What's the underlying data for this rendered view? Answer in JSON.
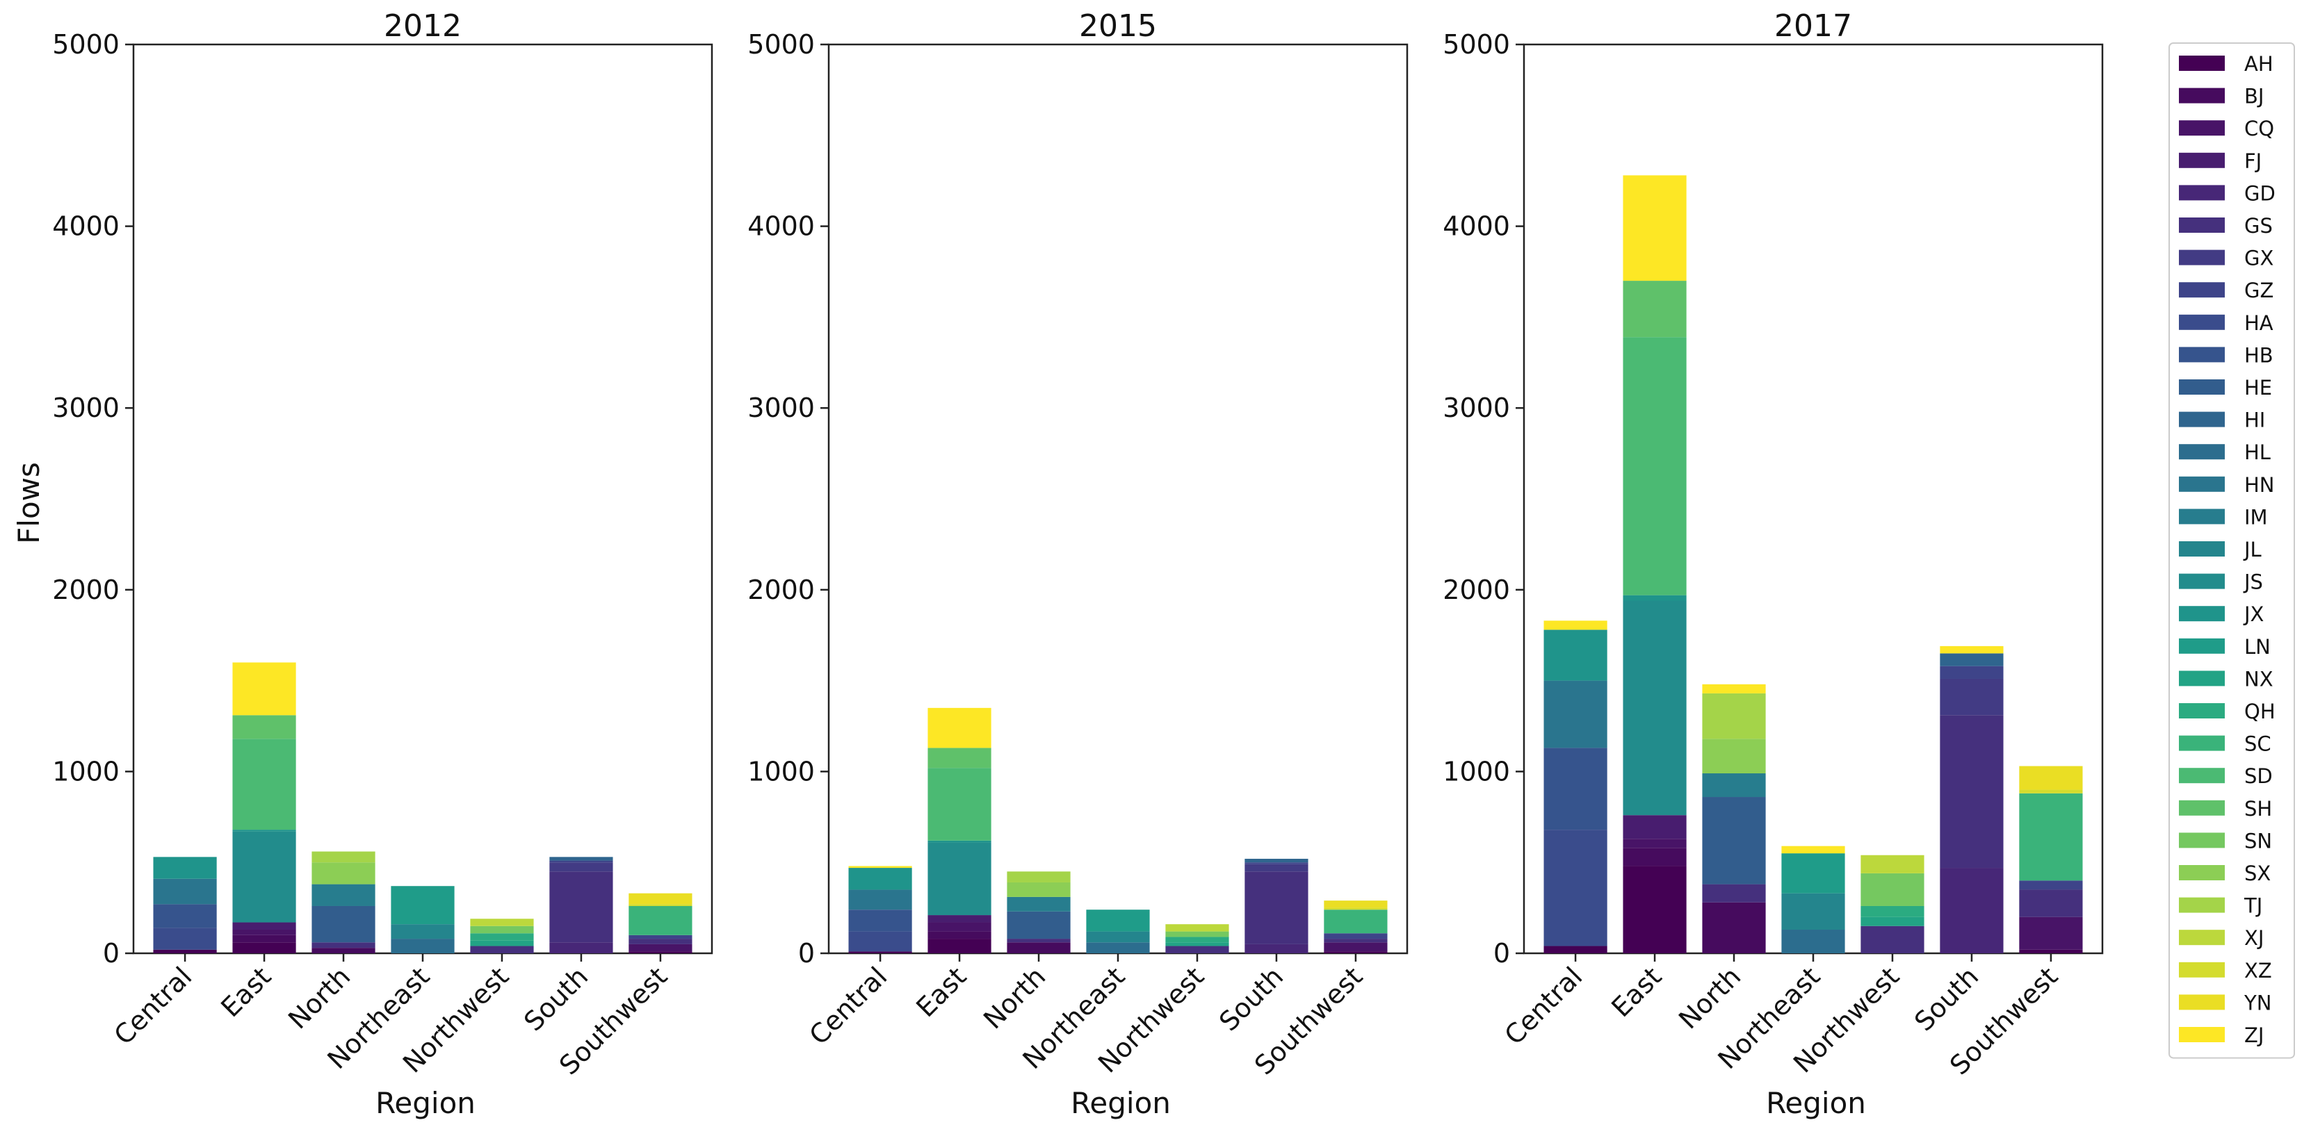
{
  "figure": {
    "ylabel": "Flows",
    "xlabel": "Region"
  },
  "chart_data": [
    {
      "type": "bar",
      "stacked": true,
      "title": "2012",
      "xlabel": "Region",
      "ylabel": "Flows",
      "ylim": [
        0,
        5000
      ],
      "yticks": [
        0,
        1000,
        2000,
        3000,
        4000,
        5000
      ],
      "categories": [
        "Central",
        "East",
        "North",
        "Northeast",
        "Northwest",
        "South",
        "Southwest"
      ],
      "series": [
        {
          "name": "AH",
          "values": [
            20,
            60,
            0,
            0,
            0,
            0,
            10
          ]
        },
        {
          "name": "BJ",
          "values": [
            0,
            40,
            30,
            0,
            0,
            0,
            0
          ]
        },
        {
          "name": "CQ",
          "values": [
            0,
            30,
            0,
            0,
            0,
            0,
            40
          ]
        },
        {
          "name": "FJ",
          "values": [
            0,
            40,
            0,
            0,
            0,
            0,
            0
          ]
        },
        {
          "name": "GD",
          "values": [
            0,
            0,
            0,
            0,
            0,
            60,
            0
          ]
        },
        {
          "name": "GS",
          "values": [
            0,
            0,
            30,
            0,
            40,
            390,
            30
          ]
        },
        {
          "name": "GX",
          "values": [
            0,
            0,
            0,
            0,
            0,
            50,
            0
          ]
        },
        {
          "name": "GZ",
          "values": [
            0,
            0,
            0,
            0,
            0,
            10,
            20
          ]
        },
        {
          "name": "HA",
          "values": [
            120,
            0,
            0,
            0,
            0,
            0,
            0
          ]
        },
        {
          "name": "HB",
          "values": [
            130,
            0,
            0,
            0,
            0,
            0,
            0
          ]
        },
        {
          "name": "HE",
          "values": [
            0,
            0,
            200,
            0,
            0,
            0,
            0
          ]
        },
        {
          "name": "HI",
          "values": [
            0,
            0,
            0,
            0,
            0,
            20,
            0
          ]
        },
        {
          "name": "HL",
          "values": [
            0,
            0,
            0,
            80,
            0,
            0,
            0
          ]
        },
        {
          "name": "HN",
          "values": [
            140,
            0,
            0,
            0,
            0,
            0,
            0
          ]
        },
        {
          "name": "IM",
          "values": [
            0,
            0,
            120,
            0,
            0,
            0,
            0
          ]
        },
        {
          "name": "JL",
          "values": [
            0,
            0,
            0,
            80,
            0,
            0,
            0
          ]
        },
        {
          "name": "JS",
          "values": [
            0,
            500,
            0,
            0,
            0,
            0,
            0
          ]
        },
        {
          "name": "JX",
          "values": [
            120,
            10,
            0,
            0,
            0,
            0,
            0
          ]
        },
        {
          "name": "LN",
          "values": [
            0,
            0,
            0,
            210,
            0,
            0,
            0
          ]
        },
        {
          "name": "NX",
          "values": [
            0,
            0,
            0,
            0,
            30,
            0,
            0
          ]
        },
        {
          "name": "QH",
          "values": [
            0,
            0,
            0,
            0,
            40,
            0,
            0
          ]
        },
        {
          "name": "SC",
          "values": [
            0,
            0,
            0,
            0,
            0,
            0,
            160
          ]
        },
        {
          "name": "SD",
          "values": [
            0,
            500,
            0,
            0,
            0,
            0,
            0
          ]
        },
        {
          "name": "SH",
          "values": [
            0,
            130,
            0,
            0,
            0,
            0,
            0
          ]
        },
        {
          "name": "SN",
          "values": [
            0,
            0,
            0,
            0,
            40,
            0,
            0
          ]
        },
        {
          "name": "SX",
          "values": [
            0,
            0,
            120,
            0,
            0,
            0,
            0
          ]
        },
        {
          "name": "TJ",
          "values": [
            0,
            0,
            60,
            0,
            0,
            0,
            0
          ]
        },
        {
          "name": "XJ",
          "values": [
            0,
            0,
            0,
            0,
            40,
            0,
            0
          ]
        },
        {
          "name": "XZ",
          "values": [
            0,
            0,
            0,
            0,
            0,
            0,
            10
          ]
        },
        {
          "name": "YN",
          "values": [
            0,
            0,
            0,
            0,
            0,
            0,
            60
          ]
        },
        {
          "name": "ZJ",
          "values": [
            0,
            290,
            0,
            0,
            0,
            0,
            0
          ]
        }
      ]
    },
    {
      "type": "bar",
      "stacked": true,
      "title": "2015",
      "xlabel": "Region",
      "ylabel": "Flows",
      "ylim": [
        0,
        5000
      ],
      "yticks": [
        0,
        1000,
        2000,
        3000,
        4000,
        5000
      ],
      "categories": [
        "Central",
        "East",
        "North",
        "Northeast",
        "Northwest",
        "South",
        "Southwest"
      ],
      "series": [
        {
          "name": "AH",
          "values": [
            10,
            80,
            0,
            0,
            0,
            0,
            10
          ]
        },
        {
          "name": "BJ",
          "values": [
            0,
            40,
            60,
            0,
            0,
            0,
            0
          ]
        },
        {
          "name": "CQ",
          "values": [
            0,
            50,
            0,
            0,
            0,
            0,
            50
          ]
        },
        {
          "name": "FJ",
          "values": [
            0,
            40,
            0,
            0,
            0,
            0,
            0
          ]
        },
        {
          "name": "GD",
          "values": [
            0,
            0,
            0,
            0,
            0,
            50,
            0
          ]
        },
        {
          "name": "GS",
          "values": [
            0,
            0,
            20,
            0,
            40,
            400,
            20
          ]
        },
        {
          "name": "GX",
          "values": [
            0,
            0,
            0,
            0,
            0,
            40,
            0
          ]
        },
        {
          "name": "GZ",
          "values": [
            0,
            0,
            0,
            0,
            0,
            10,
            30
          ]
        },
        {
          "name": "HA",
          "values": [
            110,
            0,
            0,
            0,
            0,
            0,
            0
          ]
        },
        {
          "name": "HB",
          "values": [
            120,
            0,
            0,
            0,
            0,
            0,
            0
          ]
        },
        {
          "name": "HE",
          "values": [
            0,
            0,
            150,
            0,
            0,
            0,
            0
          ]
        },
        {
          "name": "HI",
          "values": [
            0,
            0,
            0,
            0,
            0,
            20,
            0
          ]
        },
        {
          "name": "HL",
          "values": [
            0,
            0,
            0,
            60,
            0,
            0,
            0
          ]
        },
        {
          "name": "HN",
          "values": [
            110,
            0,
            0,
            0,
            0,
            0,
            0
          ]
        },
        {
          "name": "IM",
          "values": [
            0,
            0,
            80,
            0,
            0,
            0,
            0
          ]
        },
        {
          "name": "JL",
          "values": [
            0,
            0,
            0,
            60,
            0,
            0,
            0
          ]
        },
        {
          "name": "JS",
          "values": [
            0,
            400,
            0,
            0,
            0,
            0,
            0
          ]
        },
        {
          "name": "JX",
          "values": [
            120,
            10,
            0,
            0,
            0,
            0,
            0
          ]
        },
        {
          "name": "LN",
          "values": [
            0,
            0,
            0,
            120,
            0,
            0,
            0
          ]
        },
        {
          "name": "NX",
          "values": [
            0,
            0,
            0,
            0,
            20,
            0,
            0
          ]
        },
        {
          "name": "QH",
          "values": [
            0,
            0,
            0,
            0,
            30,
            0,
            0
          ]
        },
        {
          "name": "SC",
          "values": [
            0,
            0,
            0,
            0,
            0,
            0,
            130
          ]
        },
        {
          "name": "SD",
          "values": [
            0,
            400,
            0,
            0,
            0,
            0,
            0
          ]
        },
        {
          "name": "SH",
          "values": [
            0,
            110,
            0,
            0,
            0,
            0,
            0
          ]
        },
        {
          "name": "SN",
          "values": [
            0,
            0,
            0,
            0,
            30,
            0,
            0
          ]
        },
        {
          "name": "SX",
          "values": [
            0,
            0,
            80,
            0,
            0,
            0,
            0
          ]
        },
        {
          "name": "TJ",
          "values": [
            0,
            0,
            60,
            0,
            0,
            0,
            0
          ]
        },
        {
          "name": "XJ",
          "values": [
            0,
            0,
            0,
            0,
            40,
            0,
            0
          ]
        },
        {
          "name": "XZ",
          "values": [
            0,
            0,
            0,
            0,
            0,
            0,
            10
          ]
        },
        {
          "name": "YN",
          "values": [
            0,
            0,
            0,
            0,
            0,
            0,
            40
          ]
        },
        {
          "name": "ZJ",
          "values": [
            10,
            220,
            0,
            0,
            0,
            0,
            0
          ]
        }
      ]
    },
    {
      "type": "bar",
      "stacked": true,
      "title": "2017",
      "xlabel": "Region",
      "ylabel": "Flows",
      "ylim": [
        0,
        5000
      ],
      "yticks": [
        0,
        1000,
        2000,
        3000,
        4000,
        5000
      ],
      "categories": [
        "Central",
        "East",
        "North",
        "Northeast",
        "Northwest",
        "South",
        "Southwest"
      ],
      "series": [
        {
          "name": "AH",
          "values": [
            40,
            480,
            0,
            0,
            0,
            0,
            20
          ]
        },
        {
          "name": "BJ",
          "values": [
            0,
            100,
            280,
            0,
            0,
            0,
            0
          ]
        },
        {
          "name": "CQ",
          "values": [
            0,
            50,
            0,
            0,
            0,
            0,
            180
          ]
        },
        {
          "name": "FJ",
          "values": [
            0,
            130,
            0,
            0,
            0,
            0,
            0
          ]
        },
        {
          "name": "GD",
          "values": [
            0,
            0,
            0,
            0,
            0,
            470,
            0
          ]
        },
        {
          "name": "GS",
          "values": [
            0,
            0,
            100,
            0,
            150,
            840,
            150
          ]
        },
        {
          "name": "GX",
          "values": [
            0,
            0,
            0,
            0,
            0,
            200,
            0
          ]
        },
        {
          "name": "GZ",
          "values": [
            0,
            0,
            0,
            0,
            0,
            70,
            50
          ]
        },
        {
          "name": "HA",
          "values": [
            640,
            0,
            0,
            0,
            0,
            0,
            0
          ]
        },
        {
          "name": "HB",
          "values": [
            450,
            0,
            0,
            0,
            0,
            0,
            0
          ]
        },
        {
          "name": "HE",
          "values": [
            0,
            0,
            480,
            0,
            0,
            0,
            0
          ]
        },
        {
          "name": "HI",
          "values": [
            0,
            0,
            0,
            0,
            0,
            70,
            0
          ]
        },
        {
          "name": "HL",
          "values": [
            0,
            0,
            0,
            130,
            0,
            0,
            0
          ]
        },
        {
          "name": "HN",
          "values": [
            370,
            0,
            0,
            0,
            0,
            0,
            0
          ]
        },
        {
          "name": "IM",
          "values": [
            0,
            0,
            130,
            0,
            0,
            0,
            0
          ]
        },
        {
          "name": "JL",
          "values": [
            0,
            0,
            0,
            200,
            0,
            0,
            0
          ]
        },
        {
          "name": "JS",
          "values": [
            0,
            1180,
            0,
            0,
            0,
            0,
            0
          ]
        },
        {
          "name": "JX",
          "values": [
            280,
            30,
            0,
            0,
            0,
            0,
            0
          ]
        },
        {
          "name": "LN",
          "values": [
            0,
            0,
            0,
            220,
            0,
            0,
            0
          ]
        },
        {
          "name": "NX",
          "values": [
            0,
            0,
            0,
            0,
            50,
            0,
            0
          ]
        },
        {
          "name": "QH",
          "values": [
            0,
            0,
            0,
            0,
            60,
            0,
            0
          ]
        },
        {
          "name": "SC",
          "values": [
            0,
            0,
            0,
            0,
            0,
            0,
            480
          ]
        },
        {
          "name": "SD",
          "values": [
            0,
            1420,
            0,
            0,
            0,
            0,
            0
          ]
        },
        {
          "name": "SH",
          "values": [
            0,
            310,
            0,
            0,
            0,
            0,
            0
          ]
        },
        {
          "name": "SN",
          "values": [
            0,
            0,
            0,
            0,
            180,
            0,
            0
          ]
        },
        {
          "name": "SX",
          "values": [
            0,
            0,
            190,
            0,
            0,
            0,
            0
          ]
        },
        {
          "name": "TJ",
          "values": [
            0,
            0,
            250,
            0,
            0,
            0,
            0
          ]
        },
        {
          "name": "XJ",
          "values": [
            0,
            0,
            0,
            0,
            100,
            0,
            0
          ]
        },
        {
          "name": "XZ",
          "values": [
            0,
            0,
            0,
            0,
            0,
            0,
            20
          ]
        },
        {
          "name": "YN",
          "values": [
            0,
            0,
            0,
            0,
            0,
            0,
            130
          ]
        },
        {
          "name": "ZJ",
          "values": [
            50,
            580,
            50,
            40,
            0,
            40,
            0
          ]
        }
      ]
    }
  ],
  "legend": {
    "placement": "right",
    "items": [
      "AH",
      "BJ",
      "CQ",
      "FJ",
      "GD",
      "GS",
      "GX",
      "GZ",
      "HA",
      "HB",
      "HE",
      "HI",
      "HL",
      "HN",
      "IM",
      "JL",
      "JS",
      "JX",
      "LN",
      "NX",
      "QH",
      "SC",
      "SD",
      "SH",
      "SN",
      "SX",
      "TJ",
      "XJ",
      "XZ",
      "YN",
      "ZJ"
    ],
    "colors": [
      "#440154",
      "#460b5e",
      "#481467",
      "#481d6f",
      "#472777",
      "#45307d",
      "#423b84",
      "#3e4489",
      "#3a4c8c",
      "#36548d",
      "#325d8d",
      "#2f658e",
      "#2c6d8e",
      "#2a758e",
      "#277d8e",
      "#24858d",
      "#228c8c",
      "#1f948b",
      "#1f9c89",
      "#22a385",
      "#2bab81",
      "#3ab37a",
      "#4bba73",
      "#5fc16a",
      "#75c860",
      "#8cce55",
      "#a4d449",
      "#bcd83c",
      "#d4dc2e",
      "#eade24",
      "#fde725"
    ]
  }
}
